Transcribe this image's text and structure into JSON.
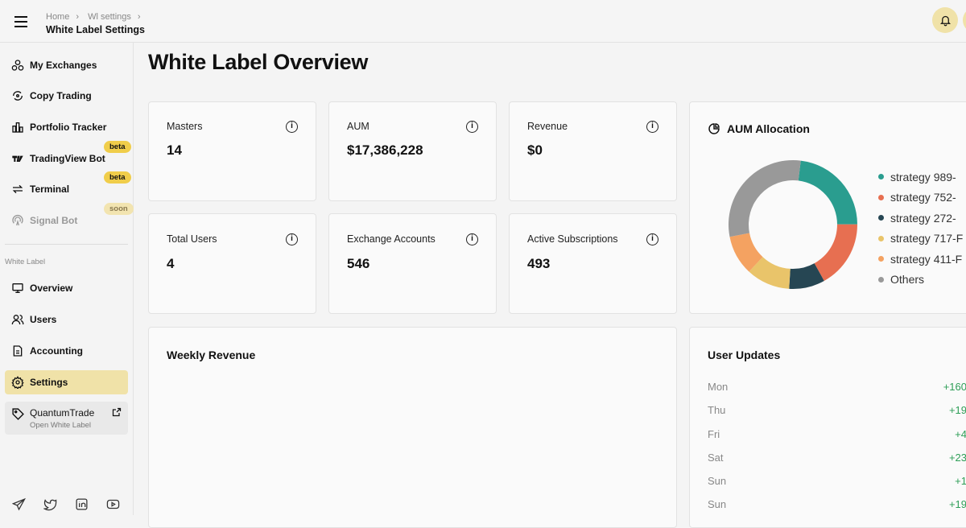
{
  "header": {
    "breadcrumbs": [
      "Home",
      "Wl settings"
    ],
    "title": "White Label Settings"
  },
  "sidebar": {
    "items": [
      {
        "label": "My Exchanges",
        "icon": "exchanges-icon"
      },
      {
        "label": "Copy Trading",
        "icon": "copy-trading-icon"
      },
      {
        "label": "Portfolio Tracker",
        "icon": "chart-bar-icon"
      },
      {
        "label": "TradingView Bot",
        "icon": "tradingview-icon",
        "badge": "beta"
      },
      {
        "label": "Terminal",
        "icon": "arrows-icon",
        "badge": "beta"
      },
      {
        "label": "Signal Bot",
        "icon": "signal-icon",
        "badge": "soon"
      }
    ],
    "section_label": "White Label",
    "wl_items": [
      {
        "label": "Overview",
        "icon": "monitor-icon"
      },
      {
        "label": "Users",
        "icon": "users-icon"
      },
      {
        "label": "Accounting",
        "icon": "document-icon"
      },
      {
        "label": "Settings",
        "icon": "gear-icon",
        "active": true
      }
    ],
    "white_label": {
      "name": "QuantumTrade",
      "sub": "Open White Label"
    }
  },
  "main": {
    "title": "White Label Overview",
    "stats": [
      {
        "label": "Masters",
        "value": "14"
      },
      {
        "label": "AUM",
        "value": "$17,386,228"
      },
      {
        "label": "Revenue",
        "value": "$0"
      },
      {
        "label": "Total Users",
        "value": "4"
      },
      {
        "label": "Exchange Accounts",
        "value": "546"
      },
      {
        "label": "Active Subscriptions",
        "value": "493"
      }
    ],
    "weekly_revenue_title": "Weekly Revenue",
    "user_updates": {
      "title": "User Updates",
      "rows": [
        {
          "day": "Mon",
          "value": "+160"
        },
        {
          "day": "Thu",
          "value": "+19"
        },
        {
          "day": "Fri",
          "value": "+4"
        },
        {
          "day": "Sat",
          "value": "+23"
        },
        {
          "day": "Sun",
          "value": "+1"
        },
        {
          "day": "Sun",
          "value": "+19"
        }
      ]
    }
  },
  "chart_data": {
    "type": "pie",
    "title": "AUM Allocation",
    "labels": [
      "strategy 989-",
      "strategy 752-",
      "strategy 272-",
      "strategy 717-F",
      "strategy 411-F",
      "Others"
    ],
    "values": [
      23,
      17,
      9,
      11,
      10,
      30
    ],
    "colors": [
      "#2a9d8f",
      "#e76f51",
      "#264653",
      "#e9c46a",
      "#f4a261",
      "#999999"
    ]
  }
}
